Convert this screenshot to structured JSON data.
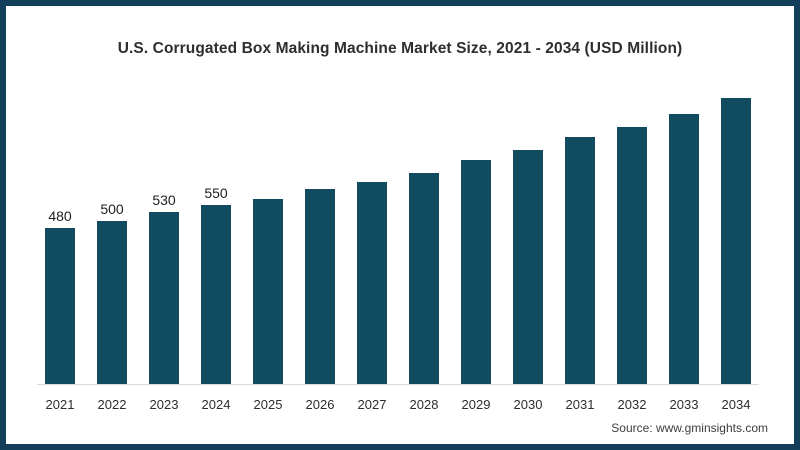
{
  "frame": {
    "border_color": "#123e59",
    "background": "#ffffff"
  },
  "title": "U.S. Corrugated Box Making Machine Market Size, 2021 - 2034 (USD Million)",
  "source": "Source: www.gminsights.com",
  "chart_data": {
    "type": "bar",
    "title": "U.S. Corrugated Box Making Machine Market Size, 2021 - 2034 (USD Million)",
    "categories": [
      "2021",
      "2022",
      "2023",
      "2024",
      "2025",
      "2026",
      "2027",
      "2028",
      "2029",
      "2030",
      "2031",
      "2032",
      "2033",
      "2034"
    ],
    "values": [
      480,
      500,
      530,
      550,
      570,
      600,
      620,
      650,
      690,
      720,
      760,
      790,
      830,
      880
    ],
    "data_labels": [
      "480",
      "500",
      "530",
      "550",
      "",
      "",
      "",
      "",
      "",
      "",
      "",
      "",
      "",
      ""
    ],
    "xlabel": "",
    "ylabel": "",
    "ylim": [
      0,
      900
    ],
    "bar_color": "#114b5f",
    "axis_line_color": "#d9d9d9",
    "gridlines": false,
    "legend": "none",
    "units": "USD Million"
  }
}
